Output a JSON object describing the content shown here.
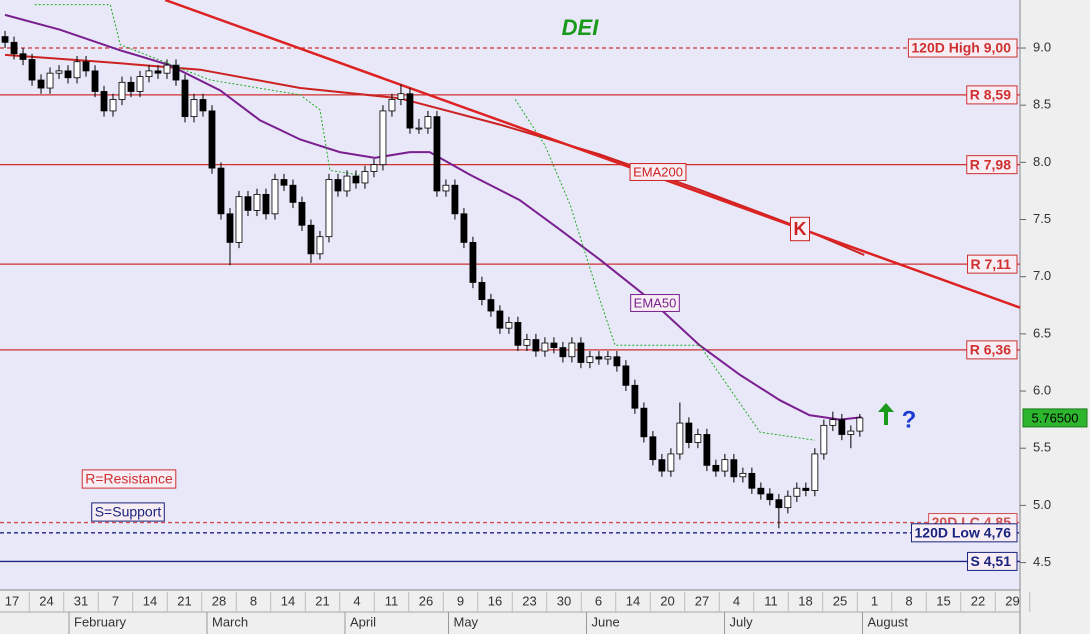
{
  "chart_data": {
    "type": "candlestick",
    "title": "DEI",
    "xlim": [
      -0.56,
      112.8
    ],
    "ylim": [
      4.26,
      9.42
    ],
    "yticks": [
      {
        "value": 4.5,
        "label": "4.5"
      },
      {
        "value": 5,
        "label": "5.0"
      },
      {
        "value": 5.5,
        "label": "5.5"
      },
      {
        "value": 6,
        "label": "6.0"
      },
      {
        "value": 6.5,
        "label": "6.5"
      },
      {
        "value": 7,
        "label": "7.0"
      },
      {
        "value": 7.5,
        "label": "7.5"
      },
      {
        "value": 8,
        "label": "8.0"
      },
      {
        "value": 8.5,
        "label": "8.5"
      },
      {
        "value": 9,
        "label": "9.0"
      }
    ],
    "date_labels": [
      17,
      24,
      31,
      7,
      14,
      21,
      28,
      8,
      14,
      21,
      4,
      11,
      26,
      9,
      16,
      23,
      30,
      6,
      14,
      20,
      27,
      4,
      11,
      18,
      25,
      1,
      8,
      15,
      22,
      29
    ],
    "months": [
      "February",
      "March",
      "April",
      "May",
      "June",
      "July",
      "August"
    ],
    "candles": [
      [
        9.1,
        9.15,
        9.0,
        9.05
      ],
      [
        9.05,
        9.1,
        8.9,
        8.95
      ],
      [
        8.95,
        9.0,
        8.85,
        8.9
      ],
      [
        8.9,
        8.95,
        8.67,
        8.72
      ],
      [
        8.72,
        8.77,
        8.6,
        8.65
      ],
      [
        8.65,
        8.83,
        8.6,
        8.78
      ],
      [
        8.78,
        8.85,
        8.73,
        8.8
      ],
      [
        8.8,
        8.85,
        8.69,
        8.74
      ],
      [
        8.74,
        8.93,
        8.69,
        8.88
      ],
      [
        8.88,
        8.93,
        8.75,
        8.8
      ],
      [
        8.8,
        8.85,
        8.57,
        8.62
      ],
      [
        8.62,
        8.67,
        8.4,
        8.45
      ],
      [
        8.45,
        8.6,
        8.4,
        8.55
      ],
      [
        8.55,
        8.75,
        8.5,
        8.7
      ],
      [
        8.7,
        8.75,
        8.57,
        8.62
      ],
      [
        8.62,
        8.8,
        8.57,
        8.75
      ],
      [
        8.75,
        8.85,
        8.7,
        8.8
      ],
      [
        8.8,
        8.85,
        8.73,
        8.78
      ],
      [
        8.78,
        8.9,
        8.73,
        8.85
      ],
      [
        8.85,
        8.9,
        8.67,
        8.72
      ],
      [
        8.72,
        8.77,
        8.35,
        8.4
      ],
      [
        8.4,
        8.6,
        8.35,
        8.55
      ],
      [
        8.55,
        8.6,
        8.4,
        8.45
      ],
      [
        8.45,
        8.5,
        7.9,
        7.95
      ],
      [
        7.95,
        8.0,
        7.5,
        7.55
      ],
      [
        7.55,
        7.6,
        7.1,
        7.3
      ],
      [
        7.3,
        7.75,
        7.25,
        7.7
      ],
      [
        7.7,
        7.75,
        7.53,
        7.58
      ],
      [
        7.58,
        7.77,
        7.53,
        7.72
      ],
      [
        7.72,
        7.77,
        7.5,
        7.55
      ],
      [
        7.55,
        7.9,
        7.5,
        7.85
      ],
      [
        7.85,
        7.9,
        7.75,
        7.8
      ],
      [
        7.8,
        7.85,
        7.6,
        7.65
      ],
      [
        7.65,
        7.7,
        7.4,
        7.45
      ],
      [
        7.45,
        7.5,
        7.12,
        7.2
      ],
      [
        7.2,
        7.4,
        7.15,
        7.35
      ],
      [
        7.35,
        7.9,
        7.3,
        7.85
      ],
      [
        7.85,
        7.9,
        7.7,
        7.75
      ],
      [
        7.75,
        7.93,
        7.7,
        7.88
      ],
      [
        7.88,
        7.93,
        7.77,
        7.82
      ],
      [
        7.82,
        7.97,
        7.77,
        7.92
      ],
      [
        7.92,
        8.03,
        7.87,
        7.98
      ],
      [
        7.98,
        8.5,
        7.93,
        8.45
      ],
      [
        8.45,
        8.6,
        8.4,
        8.55
      ],
      [
        8.55,
        8.68,
        8.5,
        8.6
      ],
      [
        8.6,
        8.65,
        8.25,
        8.3
      ],
      [
        8.3,
        8.38,
        8.25,
        8.3
      ],
      [
        8.3,
        8.45,
        8.25,
        8.4
      ],
      [
        8.4,
        8.45,
        7.7,
        7.75
      ],
      [
        7.75,
        7.85,
        7.7,
        7.8
      ],
      [
        7.8,
        7.85,
        7.5,
        7.55
      ],
      [
        7.55,
        7.6,
        7.25,
        7.3
      ],
      [
        7.3,
        7.35,
        6.9,
        6.95
      ],
      [
        6.95,
        7.0,
        6.75,
        6.8
      ],
      [
        6.8,
        6.85,
        6.65,
        6.7
      ],
      [
        6.7,
        6.75,
        6.5,
        6.55
      ],
      [
        6.55,
        6.65,
        6.5,
        6.6
      ],
      [
        6.6,
        6.65,
        6.35,
        6.4
      ],
      [
        6.4,
        6.5,
        6.35,
        6.45
      ],
      [
        6.45,
        6.5,
        6.3,
        6.35
      ],
      [
        6.35,
        6.47,
        6.3,
        6.42
      ],
      [
        6.42,
        6.47,
        6.33,
        6.38
      ],
      [
        6.38,
        6.43,
        6.25,
        6.3
      ],
      [
        6.3,
        6.47,
        6.25,
        6.42
      ],
      [
        6.42,
        6.47,
        6.2,
        6.25
      ],
      [
        6.25,
        6.35,
        6.2,
        6.3
      ],
      [
        6.3,
        6.35,
        6.23,
        6.28
      ],
      [
        6.28,
        6.35,
        6.23,
        6.3
      ],
      [
        6.3,
        6.35,
        6.17,
        6.22
      ],
      [
        6.22,
        6.27,
        6.0,
        6.05
      ],
      [
        6.05,
        6.1,
        5.8,
        5.85
      ],
      [
        5.85,
        5.9,
        5.55,
        5.6
      ],
      [
        5.6,
        5.65,
        5.35,
        5.4
      ],
      [
        5.4,
        5.45,
        5.25,
        5.3
      ],
      [
        5.3,
        5.5,
        5.25,
        5.45
      ],
      [
        5.45,
        5.9,
        5.4,
        5.72
      ],
      [
        5.72,
        5.77,
        5.5,
        5.55
      ],
      [
        5.55,
        5.67,
        5.5,
        5.62
      ],
      [
        5.62,
        5.67,
        5.3,
        5.35
      ],
      [
        5.35,
        5.4,
        5.25,
        5.3
      ],
      [
        5.3,
        5.45,
        5.25,
        5.4
      ],
      [
        5.4,
        5.45,
        5.2,
        5.25
      ],
      [
        5.25,
        5.33,
        5.2,
        5.28
      ],
      [
        5.28,
        5.33,
        5.1,
        5.15
      ],
      [
        5.15,
        5.2,
        5.05,
        5.1
      ],
      [
        5.1,
        5.15,
        5.0,
        5.05
      ],
      [
        5.05,
        5.1,
        4.8,
        4.98
      ],
      [
        4.98,
        5.13,
        4.93,
        5.08
      ],
      [
        5.08,
        5.2,
        5.03,
        5.15
      ],
      [
        5.15,
        5.2,
        5.08,
        5.13
      ],
      [
        5.13,
        5.5,
        5.08,
        5.45
      ],
      [
        5.45,
        5.75,
        5.4,
        5.7
      ],
      [
        5.7,
        5.82,
        5.65,
        5.75
      ],
      [
        5.75,
        5.8,
        5.57,
        5.62
      ],
      [
        5.62,
        5.7,
        5.5,
        5.65
      ],
      [
        5.65,
        5.8,
        5.6,
        5.765
      ]
    ],
    "last_price": {
      "value": 5.765,
      "label": "5.76500"
    },
    "lines": [
      {
        "name": "EMA200",
        "color": "#cc2222",
        "width": 2,
        "x": [
          0,
          10.6,
          21.7,
          32.8,
          43.9,
          55,
          66.1,
          77.2,
          88.3,
          95.5
        ],
        "values": [
          8.94,
          8.88,
          8.81,
          8.65,
          8.56,
          8.33,
          8.07,
          7.76,
          7.43,
          7.19
        ]
      },
      {
        "name": "EMA50",
        "color": "#7a1f8f",
        "width": 2,
        "x": [
          0,
          6.1,
          12.8,
          18.3,
          23.9,
          28.3,
          32.8,
          37.2,
          41.1,
          45,
          47.2,
          51.7,
          57.2,
          61.7,
          66.1,
          71.7,
          77.2,
          81.7,
          86.1,
          89.4,
          92.8,
          95.2
        ],
        "values": [
          9.29,
          9.16,
          8.98,
          8.85,
          8.63,
          8.37,
          8.2,
          8.09,
          8.04,
          8.09,
          8.09,
          7.89,
          7.67,
          7.41,
          7.15,
          6.8,
          6.4,
          6.14,
          5.92,
          5.79,
          5.75,
          5.77
        ]
      },
      {
        "color": "#22aa22",
        "width": 1,
        "dash": true,
        "x": [
          3.3,
          11.7,
          12.8,
          22.8,
          32.8,
          35,
          36.1,
          39.4,
          null,
          56.7,
          60,
          62.8,
          66.1,
          67.8,
          77.2,
          83.9,
          90
        ],
        "values": [
          9.38,
          9.38,
          9.03,
          8.72,
          8.59,
          8.46,
          7.93,
          7.89,
          null,
          8.55,
          8.15,
          7.63,
          6.8,
          6.4,
          6.4,
          5.64,
          5.57
        ]
      },
      {
        "color": "#dd2222",
        "width": 2.5,
        "x": [
          17.8,
          112.8
        ],
        "values": [
          9.42,
          6.73
        ]
      }
    ],
    "levels": [
      {
        "value": 9.0,
        "label": "120D High 9,00",
        "color": "#d03030",
        "dash": true
      },
      {
        "value": 8.59,
        "label": "R 8,59",
        "color": "#d03030",
        "dash": false
      },
      {
        "value": 7.98,
        "label": "R 7,98",
        "color": "#d03030",
        "dash": false
      },
      {
        "value": 7.11,
        "label": "R 7,11",
        "color": "#d03030",
        "dash": false
      },
      {
        "value": 6.36,
        "label": "R 6,36",
        "color": "#d03030",
        "dash": false
      },
      {
        "value": 4.85,
        "label": "20D LC 4,85",
        "color": "#d05050",
        "dash": true
      },
      {
        "value": 4.76,
        "label": "120D Low 4,76",
        "color": "#1a237e",
        "dash": true
      },
      {
        "value": 4.51,
        "label": "S 4,51",
        "color": "#1a237e",
        "dash": false
      }
    ],
    "annotations": [
      "EMA200",
      "EMA50",
      "K",
      "R=Resistance",
      "S=Support",
      "?"
    ]
  }
}
